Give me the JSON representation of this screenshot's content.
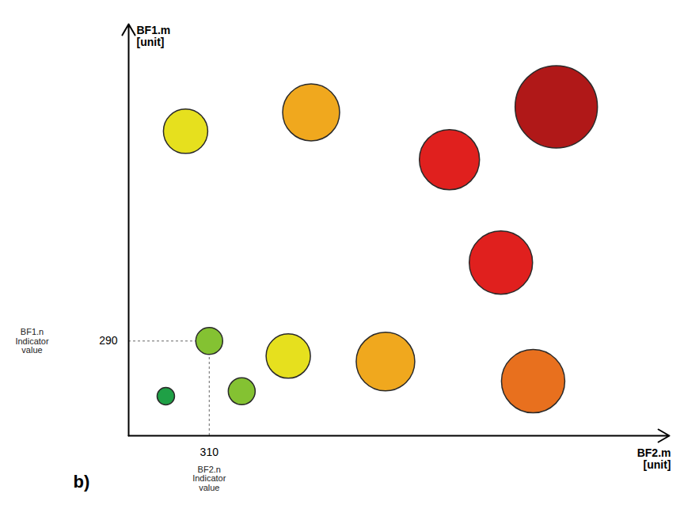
{
  "chart_data": {
    "type": "scatter",
    "panel_label": "b)",
    "x_label": "BF2.m [unit]",
    "y_label": "BF1.m [unit]",
    "xlim": [
      0,
      2080
    ],
    "ylim": [
      0,
      1260
    ],
    "xticks": [
      310
    ],
    "yticks": [
      290
    ],
    "grid": false,
    "x": [
      219,
      702,
      1645,
      1234,
      1432,
      310,
      614,
      988,
      1556,
      143,
      435
    ],
    "values": [
      932,
      990,
      1007,
      845,
      530,
      290,
      244,
      227,
      167,
      121,
      136
    ],
    "sizes": [
      28,
      36,
      52,
      38,
      40,
      17,
      28,
      37,
      40,
      11,
      17
    ],
    "colors": [
      "#e6e01e",
      "#f0a81e",
      "#b01818",
      "#e0201e",
      "#e0201e",
      "#84c232",
      "#e6e01e",
      "#f0a81e",
      "#e8701e",
      "#1fa046",
      "#84c232"
    ],
    "annotations": [
      {
        "axis": "x",
        "value": 310,
        "text": "BF2.n Indicator value"
      },
      {
        "axis": "y",
        "value": 290,
        "text": "BF1.n Indicator value"
      }
    ]
  }
}
